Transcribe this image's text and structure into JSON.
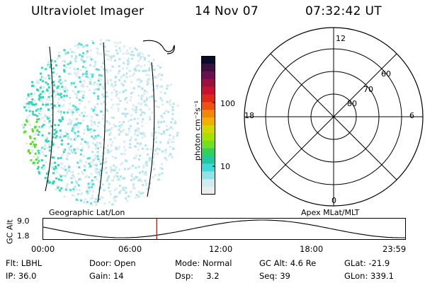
{
  "header": {
    "instrument": "Ultraviolet Imager",
    "date": "14 Nov 07",
    "time": "07:32:42 UT"
  },
  "colorbar": {
    "unit_label": "photon cm⁻²s⁻¹",
    "ticks": [
      "100",
      "10"
    ],
    "colors": [
      "#0a0a2a",
      "#3a1040",
      "#6a1050",
      "#9a1040",
      "#c81030",
      "#e02818",
      "#f05010",
      "#f08808",
      "#f0b000",
      "#d0d800",
      "#a8e000",
      "#70e020",
      "#30d060",
      "#20c8a0",
      "#40d8d8",
      "#90e4e8",
      "#d0ecee",
      "#e8eeee"
    ]
  },
  "polar_plot": {
    "mlt_labels": {
      "top": "12",
      "bottom": "0",
      "left": "18",
      "right": "6"
    },
    "lat_labels": [
      "60",
      "70",
      "80"
    ],
    "projection_label": "Apex MLat/MLT"
  },
  "geo_plot": {
    "projection_label": "Geographic Lat/Lon"
  },
  "altitude_plot": {
    "ylabel": "GC Alt",
    "yticks": [
      "9.0",
      "1.8"
    ],
    "xticks": [
      "00:00",
      "06:00",
      "12:00",
      "18:00",
      "23:59"
    ],
    "current_time_hours": 7.54,
    "orbit_min_hours": 5.25,
    "orbit_max_hours": 14.5
  },
  "status": {
    "filter": "Flt: LBHL",
    "ip": "IP: 36.0",
    "door": "Door: Open",
    "gain": "Gain: 14",
    "mode": "Mode: Normal",
    "dsp": "Dsp:     3.2",
    "gc_alt": "GC Alt: 4.6 Re",
    "seq": "Seq: 39",
    "glat": "GLat: -21.9",
    "glon": "GLon: 339.1"
  },
  "accent_colors": {
    "time_marker": "#d01010",
    "aurora_green": "#40e020",
    "aurora_cyan": "#30d8c0"
  }
}
